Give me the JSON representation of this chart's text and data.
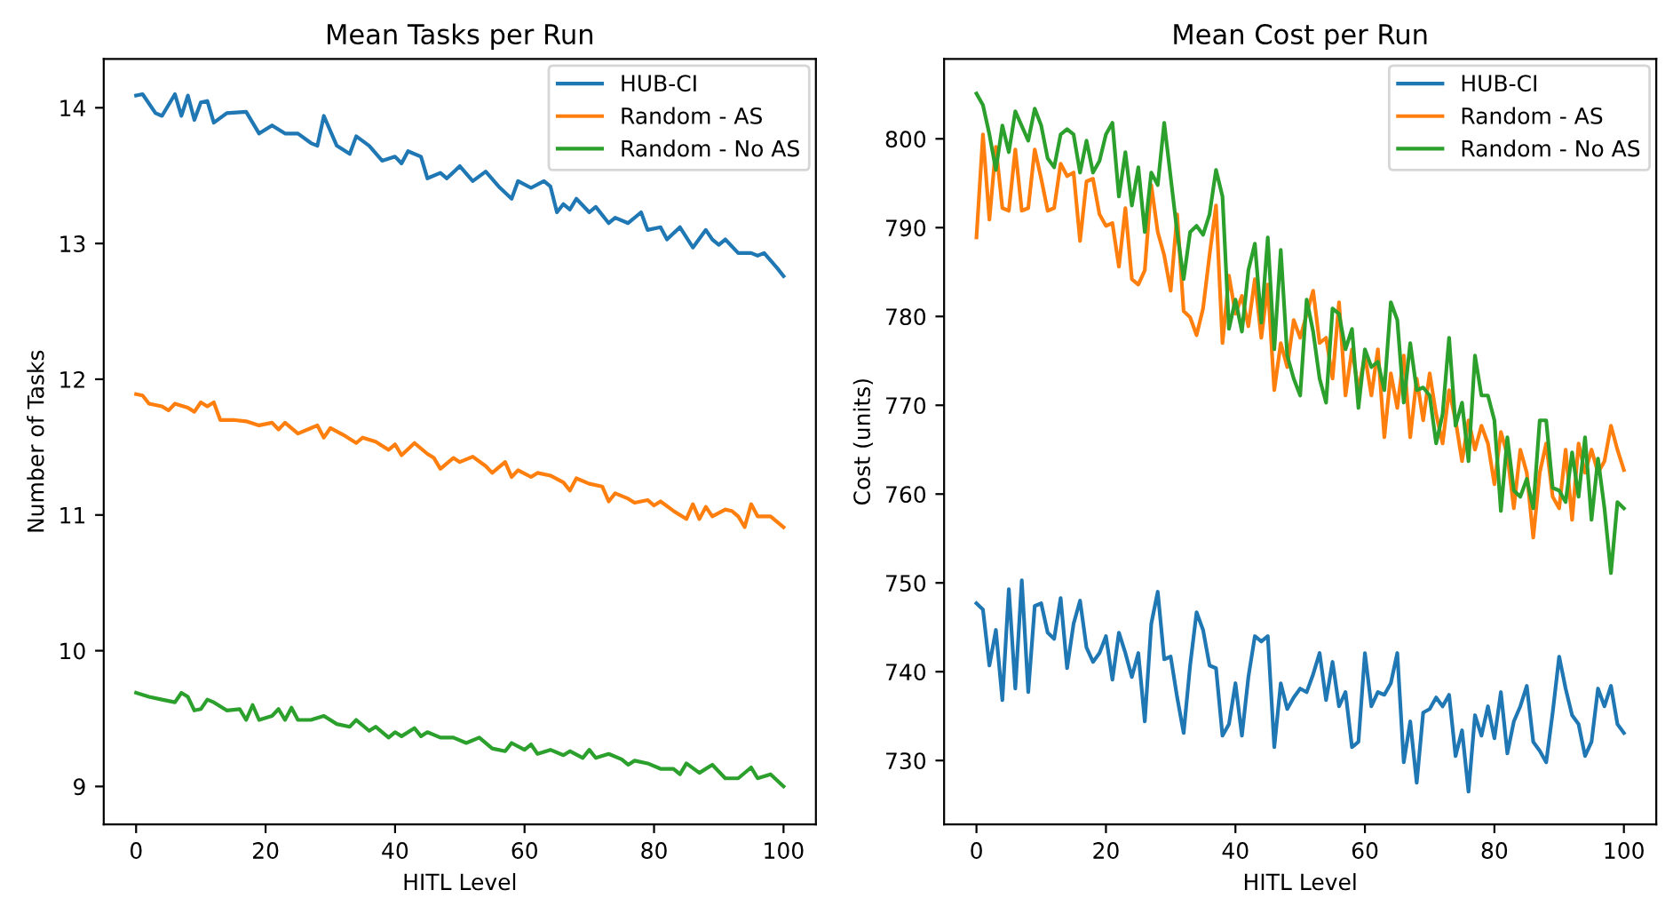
{
  "chart_data": [
    {
      "type": "line",
      "title": "Mean Tasks per Run",
      "xlabel": "HITL Level",
      "ylabel": "Number of Tasks",
      "xlim": [
        -5,
        105
      ],
      "ylim": [
        8.72,
        14.36
      ],
      "xticks": [
        0,
        20,
        40,
        60,
        80,
        100
      ],
      "yticks": [
        9,
        10,
        11,
        12,
        13,
        14
      ],
      "legend": "top right",
      "grid": false,
      "series": [
        {
          "name": "HUB-CI",
          "color": "#1f77b4",
          "x": [
            0,
            1,
            3,
            4,
            6,
            7,
            8,
            9,
            10,
            11,
            12,
            14,
            17,
            19,
            21,
            23,
            25,
            27,
            28,
            29,
            31,
            33,
            34,
            36,
            38,
            40,
            41,
            42,
            44,
            45,
            47,
            48,
            50,
            52,
            54,
            56,
            58,
            59,
            61,
            63,
            64,
            65,
            66,
            67,
            68,
            70,
            71,
            73,
            74,
            76,
            78,
            79,
            81,
            82,
            84,
            86,
            88,
            89,
            90,
            91,
            93,
            95,
            96,
            97,
            99,
            100
          ],
          "values": [
            14.09,
            14.1,
            13.96,
            13.94,
            14.1,
            13.94,
            14.09,
            13.91,
            14.04,
            14.05,
            13.89,
            13.96,
            13.97,
            13.81,
            13.87,
            13.81,
            13.81,
            13.74,
            13.72,
            13.94,
            13.72,
            13.66,
            13.79,
            13.72,
            13.61,
            13.64,
            13.59,
            13.68,
            13.64,
            13.48,
            13.52,
            13.48,
            13.57,
            13.46,
            13.53,
            13.42,
            13.33,
            13.46,
            13.41,
            13.46,
            13.42,
            13.23,
            13.29,
            13.25,
            13.33,
            13.23,
            13.27,
            13.15,
            13.19,
            13.15,
            13.23,
            13.1,
            13.12,
            13.03,
            13.12,
            12.97,
            13.1,
            13.03,
            12.99,
            13.03,
            12.93,
            12.93,
            12.91,
            12.93,
            12.82,
            12.76
          ]
        },
        {
          "name": "Random - AS",
          "color": "#ff7f0e",
          "x": [
            0,
            1,
            2,
            4,
            5,
            6,
            8,
            9,
            10,
            11,
            12,
            13,
            15,
            17,
            19,
            21,
            22,
            23,
            25,
            27,
            28,
            29,
            30,
            32,
            34,
            35,
            37,
            39,
            40,
            41,
            43,
            45,
            46,
            47,
            49,
            50,
            52,
            54,
            55,
            57,
            58,
            59,
            61,
            62,
            64,
            66,
            67,
            68,
            70,
            72,
            73,
            74,
            76,
            77,
            79,
            80,
            81,
            83,
            85,
            86,
            87,
            88,
            89,
            91,
            92,
            93,
            94,
            95,
            96,
            98,
            100
          ],
          "values": [
            11.89,
            11.88,
            11.82,
            11.8,
            11.77,
            11.82,
            11.79,
            11.76,
            11.83,
            11.8,
            11.83,
            11.7,
            11.7,
            11.69,
            11.66,
            11.68,
            11.63,
            11.68,
            11.6,
            11.64,
            11.66,
            11.57,
            11.64,
            11.59,
            11.53,
            11.57,
            11.54,
            11.48,
            11.52,
            11.44,
            11.53,
            11.45,
            11.42,
            11.34,
            11.42,
            11.39,
            11.43,
            11.36,
            11.31,
            11.39,
            11.28,
            11.33,
            11.28,
            11.31,
            11.29,
            11.24,
            11.18,
            11.27,
            11.23,
            11.21,
            11.1,
            11.16,
            11.12,
            11.09,
            11.11,
            11.07,
            11.1,
            11.03,
            10.97,
            11.08,
            10.97,
            11.06,
            10.99,
            11.04,
            11.03,
            10.99,
            10.91,
            11.08,
            10.99,
            10.99,
            10.91
          ]
        },
        {
          "name": "Random - No AS",
          "color": "#2ca02c",
          "x": [
            0,
            2,
            4,
            6,
            7,
            8,
            9,
            10,
            11,
            12,
            14,
            16,
            17,
            18,
            19,
            21,
            22,
            23,
            24,
            25,
            27,
            29,
            31,
            33,
            34,
            36,
            37,
            39,
            40,
            41,
            43,
            44,
            45,
            47,
            49,
            51,
            53,
            55,
            57,
            58,
            60,
            61,
            62,
            64,
            66,
            67,
            69,
            70,
            71,
            73,
            75,
            76,
            77,
            79,
            81,
            83,
            84,
            85,
            87,
            89,
            91,
            93,
            95,
            96,
            98,
            100
          ],
          "values": [
            9.69,
            9.66,
            9.64,
            9.62,
            9.69,
            9.66,
            9.56,
            9.57,
            9.64,
            9.62,
            9.56,
            9.57,
            9.49,
            9.6,
            9.49,
            9.52,
            9.57,
            9.49,
            9.58,
            9.49,
            9.49,
            9.52,
            9.46,
            9.44,
            9.49,
            9.41,
            9.44,
            9.36,
            9.4,
            9.37,
            9.43,
            9.37,
            9.4,
            9.36,
            9.36,
            9.32,
            9.36,
            9.28,
            9.26,
            9.32,
            9.27,
            9.31,
            9.24,
            9.27,
            9.23,
            9.26,
            9.21,
            9.27,
            9.21,
            9.24,
            9.2,
            9.16,
            9.19,
            9.17,
            9.13,
            9.13,
            9.09,
            9.17,
            9.1,
            9.16,
            9.06,
            9.06,
            9.14,
            9.06,
            9.09,
            9.0
          ]
        }
      ]
    },
    {
      "type": "line",
      "title": "Mean Cost per Run",
      "xlabel": "HITL Level",
      "ylabel": "Cost (units)",
      "xlim": [
        -5,
        105
      ],
      "ylim": [
        722.8,
        809
      ],
      "xticks": [
        0,
        20,
        40,
        60,
        80,
        100
      ],
      "yticks": [
        730,
        740,
        750,
        760,
        770,
        780,
        790,
        800
      ],
      "legend": "top right",
      "grid": false,
      "series": [
        {
          "name": "HUB-CI",
          "color": "#1f77b4",
          "x": [
            0,
            1,
            2,
            3,
            4,
            5,
            6,
            7,
            8,
            9,
            10,
            11,
            12,
            13,
            14,
            15,
            16,
            17,
            18,
            19,
            20,
            21,
            22,
            23,
            24,
            25,
            26,
            27,
            28,
            29,
            30,
            31,
            32,
            33,
            34,
            35,
            36,
            37,
            38,
            39,
            40,
            41,
            42,
            43,
            44,
            45,
            46,
            47,
            48,
            49,
            50,
            51,
            52,
            53,
            54,
            55,
            56,
            57,
            58,
            59,
            60,
            61,
            62,
            63,
            64,
            65,
            66,
            67,
            68,
            69,
            70,
            71,
            72,
            73,
            74,
            75,
            76,
            77,
            78,
            79,
            80,
            81,
            82,
            83,
            84,
            85,
            86,
            87,
            88,
            89,
            90,
            91,
            92,
            93,
            94,
            95,
            96,
            97,
            98,
            99,
            100
          ],
          "values": [
            747.7,
            747,
            740.7,
            744.7,
            736.8,
            749.3,
            738.1,
            750.3,
            737.7,
            747.4,
            747.7,
            744.4,
            743.7,
            748.3,
            740.4,
            745.4,
            748,
            742.7,
            741.1,
            742.1,
            744,
            739.1,
            744.4,
            742.1,
            739.4,
            742.1,
            734.4,
            745.4,
            749,
            741.4,
            741.7,
            737.1,
            733.1,
            740.7,
            746.7,
            744.7,
            740.7,
            740.4,
            732.8,
            734.1,
            738.7,
            732.8,
            739.4,
            744,
            743.4,
            744,
            731.5,
            738.7,
            735.8,
            737.1,
            738.1,
            737.7,
            739.7,
            742.1,
            736.8,
            741.1,
            736.1,
            737.7,
            731.5,
            732.1,
            742.1,
            736.1,
            737.7,
            737.4,
            738.7,
            742.1,
            729.8,
            734.4,
            727.5,
            735.4,
            735.8,
            737.1,
            736.1,
            737.4,
            730.5,
            733.4,
            726.5,
            735.1,
            732.8,
            736.1,
            732.5,
            737.7,
            730.8,
            734.4,
            736.1,
            738.4,
            732.1,
            731.1,
            729.8,
            735.4,
            741.7,
            738.1,
            735.1,
            734.1,
            730.5,
            732.1,
            738.1,
            736.1,
            738.4,
            734.1,
            733.1
          ]
        },
        {
          "name": "Random - AS",
          "color": "#ff7f0e",
          "x": [
            0,
            1,
            2,
            3,
            4,
            5,
            6,
            7,
            8,
            9,
            10,
            11,
            12,
            13,
            14,
            15,
            16,
            17,
            18,
            19,
            20,
            21,
            22,
            23,
            24,
            25,
            26,
            27,
            28,
            29,
            30,
            31,
            32,
            33,
            34,
            35,
            36,
            37,
            38,
            39,
            40,
            41,
            42,
            43,
            44,
            45,
            46,
            47,
            48,
            49,
            50,
            52,
            53,
            54,
            55,
            56,
            57,
            58,
            59,
            60,
            61,
            62,
            63,
            64,
            65,
            66,
            67,
            68,
            69,
            70,
            71,
            72,
            73,
            74,
            75,
            76,
            77,
            78,
            79,
            80,
            81,
            82,
            83,
            84,
            85,
            86,
            87,
            88,
            89,
            90,
            91,
            92,
            93,
            94,
            95,
            96,
            97,
            98,
            99,
            100
          ],
          "values": [
            788.9,
            800.5,
            790.9,
            799.1,
            792.2,
            791.9,
            798.8,
            791.9,
            792.2,
            798.8,
            795.5,
            791.9,
            792.2,
            797.2,
            795.8,
            796.2,
            788.5,
            795.2,
            795.5,
            791.5,
            790.2,
            790.5,
            785.6,
            792.2,
            784.2,
            783.6,
            785.2,
            794.8,
            789.5,
            786.9,
            782.9,
            791.5,
            780.6,
            779.9,
            777.9,
            780.9,
            786.9,
            792.5,
            777,
            784.6,
            780.3,
            782.3,
            778.9,
            784.2,
            777.6,
            783.6,
            771.7,
            777,
            774.3,
            779.6,
            777.6,
            782.9,
            777,
            777.6,
            773,
            781.6,
            771.1,
            776.3,
            771.7,
            775.6,
            771.1,
            776.3,
            766.4,
            773.6,
            769.7,
            775.6,
            766.4,
            773,
            768.3,
            773.6,
            769,
            765.7,
            771.7,
            768.3,
            763.7,
            768.3,
            765,
            767.7,
            765.7,
            761.1,
            767,
            764.4,
            758.4,
            765,
            762.4,
            755.1,
            762.4,
            765.7,
            759.7,
            758.4,
            765,
            757.1,
            765.7,
            762.4,
            765,
            762.4,
            763.7,
            767.7,
            765,
            762.7
          ]
        },
        {
          "name": "Random - No AS",
          "color": "#2ca02c",
          "x": [
            0,
            1,
            2,
            3,
            4,
            5,
            6,
            8,
            9,
            10,
            11,
            12,
            13,
            14,
            15,
            16,
            17,
            18,
            19,
            20,
            21,
            22,
            23,
            24,
            25,
            26,
            27,
            28,
            29,
            31,
            32,
            33,
            34,
            35,
            36,
            37,
            38,
            39,
            40,
            41,
            42,
            43,
            44,
            45,
            46,
            47,
            48,
            49,
            50,
            51,
            52,
            53,
            54,
            55,
            56,
            57,
            58,
            59,
            60,
            61,
            62,
            63,
            64,
            65,
            66,
            67,
            68,
            69,
            70,
            71,
            72,
            73,
            74,
            75,
            76,
            77,
            78,
            79,
            80,
            81,
            82,
            83,
            84,
            85,
            86,
            87,
            88,
            89,
            90,
            91,
            92,
            93,
            94,
            95,
            96,
            97,
            98,
            99,
            100
          ],
          "values": [
            805.1,
            803.8,
            800.5,
            796.5,
            801.5,
            798.5,
            803.1,
            799.8,
            803.4,
            801.5,
            797.8,
            796.8,
            800.5,
            801.1,
            800.5,
            796.2,
            799.8,
            796.2,
            797.5,
            800.5,
            801.8,
            793.5,
            798.5,
            792.5,
            796.8,
            789.5,
            796.2,
            794.8,
            801.8,
            789.5,
            784.2,
            789.5,
            790.2,
            789.2,
            791.5,
            796.5,
            793.5,
            778.6,
            781.9,
            778.3,
            785.2,
            788.2,
            779.3,
            788.9,
            776.3,
            787.5,
            775.6,
            773,
            771.1,
            781.9,
            778.3,
            773,
            770.3,
            780.9,
            780.3,
            776.3,
            778.6,
            769.7,
            776.3,
            774.3,
            774.9,
            771.7,
            781.6,
            779.6,
            770.3,
            777,
            771.7,
            772,
            771.1,
            765.7,
            769,
            777.6,
            767.7,
            770.3,
            763.7,
            775.6,
            771.1,
            771.1,
            768.3,
            758.1,
            766.4,
            760.4,
            759.7,
            761.7,
            758.4,
            768.3,
            768.3,
            760.7,
            760.4,
            759.1,
            764.7,
            759.7,
            766.4,
            757.1,
            764,
            758.4,
            751.1,
            759.1,
            758.4
          ]
        }
      ]
    }
  ]
}
